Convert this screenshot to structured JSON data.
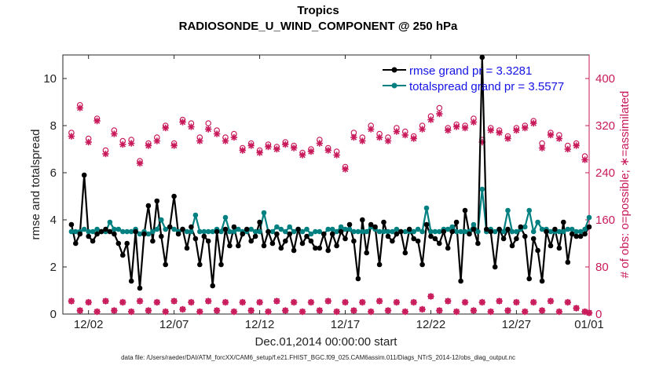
{
  "chart_data": {
    "type": "line",
    "title": "Tropics",
    "subtitle": "RADIOSONDE_U_WIND_COMPONENT @ 250 hPa",
    "xlabel": "Dec.01,2014 00:00:00 start",
    "ylabel": "rmse and totalspread",
    "y2label": "# of obs: o=possible; ∗=assimilated",
    "footnote": "data file: /Users/raeder/DAI/ATM_forcXX/CAM6_setup/f.e21.FHIST_BGC.f09_025.CAM6assim.011/Diags_NTrS_2014-12/obs_diag_output.nc",
    "xlim": [
      0.5,
      31.25
    ],
    "ylim": [
      0,
      11
    ],
    "y2lim": [
      0,
      440
    ],
    "x_ticks": [
      {
        "value": 2,
        "label": "12/02"
      },
      {
        "value": 7,
        "label": "12/07"
      },
      {
        "value": 12,
        "label": "12/12"
      },
      {
        "value": 17,
        "label": "12/17"
      },
      {
        "value": 22,
        "label": "12/22"
      },
      {
        "value": 27,
        "label": "12/27"
      },
      {
        "value": 32,
        "label": "01/01"
      }
    ],
    "y_ticks": [
      0,
      2,
      4,
      6,
      8,
      10
    ],
    "y2_ticks": [
      0,
      80,
      160,
      240,
      320,
      400
    ],
    "legend_position": "top-right",
    "colors": {
      "rmse": "#000000",
      "spread": "#008080",
      "obs": "#c8195a",
      "legend_text": "#1414e6",
      "title": "#000000"
    },
    "x": [
      1.0,
      1.25,
      1.5,
      1.75,
      2.0,
      2.25,
      2.5,
      2.75,
      3.0,
      3.25,
      3.5,
      3.75,
      4.0,
      4.25,
      4.5,
      4.75,
      5.0,
      5.25,
      5.5,
      5.75,
      6.0,
      6.25,
      6.5,
      6.75,
      7.0,
      7.25,
      7.5,
      7.75,
      8.0,
      8.25,
      8.5,
      8.75,
      9.0,
      9.25,
      9.5,
      9.75,
      10.0,
      10.25,
      10.5,
      10.75,
      11.0,
      11.25,
      11.5,
      11.75,
      12.0,
      12.25,
      12.5,
      12.75,
      13.0,
      13.25,
      13.5,
      13.75,
      14.0,
      14.25,
      14.5,
      14.75,
      15.0,
      15.25,
      15.5,
      15.75,
      16.0,
      16.25,
      16.5,
      16.75,
      17.0,
      17.25,
      17.5,
      17.75,
      18.0,
      18.25,
      18.5,
      18.75,
      19.0,
      19.25,
      19.5,
      19.75,
      20.0,
      20.25,
      20.5,
      20.75,
      21.0,
      21.25,
      21.5,
      21.75,
      22.0,
      22.25,
      22.5,
      22.75,
      23.0,
      23.25,
      23.5,
      23.75,
      24.0,
      24.25,
      24.5,
      24.75,
      25.0,
      25.25,
      25.5,
      25.75,
      26.0,
      26.25,
      26.5,
      26.75,
      27.0,
      27.25,
      27.5,
      27.75,
      28.0,
      28.25,
      28.5,
      28.75,
      29.0,
      29.25,
      29.5,
      29.75,
      30.0,
      30.25,
      30.5,
      30.75,
      31.0,
      31.25
    ],
    "series": [
      {
        "name": "rmse grand pr = 3.3281",
        "color": "#000000",
        "values": [
          3.8,
          3.0,
          3.4,
          5.9,
          3.3,
          3.1,
          3.4,
          3.5,
          3.6,
          3.5,
          3.4,
          3.0,
          2.5,
          3.0,
          1.4,
          3.5,
          1.1,
          3.4,
          4.6,
          3.1,
          4.8,
          3.3,
          2.1,
          3.7,
          5.0,
          3.4,
          3.6,
          2.8,
          3.7,
          3.2,
          2.1,
          3.3,
          3.1,
          1.2,
          3.5,
          2.1,
          3.6,
          2.9,
          3.7,
          2.9,
          3.4,
          3.6,
          3.1,
          3.3,
          3.9,
          2.9,
          3.5,
          3.0,
          3.4,
          2.8,
          3.1,
          3.4,
          2.7,
          3.6,
          3.0,
          3.3,
          3.1,
          2.8,
          2.8,
          3.4,
          2.7,
          3.4,
          2.9,
          3.5,
          3.2,
          3.8,
          3.1,
          1.5,
          4.0,
          2.6,
          3.8,
          3.7,
          2.1,
          3.9,
          3.3,
          3.1,
          3.4,
          3.5,
          2.6,
          3.6,
          3.2,
          3.1,
          2.1,
          3.8,
          3.3,
          3.2,
          3.0,
          3.5,
          2.8,
          3.5,
          3.9,
          1.4,
          4.4,
          3.4,
          3.6,
          3.0,
          10.9,
          3.6,
          3.5,
          2.0,
          3.6,
          3.2,
          3.6,
          2.9,
          3.2,
          3.7,
          3.3,
          1.5,
          3.2,
          2.7,
          1.4,
          3.5,
          2.9,
          3.6,
          2.8,
          3.9,
          2.2,
          3.4,
          3.3,
          3.3,
          3.4,
          3.7
        ]
      },
      {
        "name": "totalspread grand pr = 3.5577",
        "color": "#008080",
        "values": [
          3.5,
          3.5,
          3.5,
          3.6,
          3.5,
          3.5,
          3.6,
          3.5,
          3.5,
          3.9,
          3.6,
          3.6,
          3.5,
          3.5,
          3.5,
          3.6,
          3.4,
          3.5,
          3.4,
          3.5,
          3.6,
          4.0,
          3.6,
          3.7,
          3.6,
          3.5,
          3.6,
          3.5,
          3.5,
          4.2,
          3.5,
          3.5,
          3.5,
          3.5,
          3.6,
          3.5,
          4.1,
          3.5,
          3.5,
          3.6,
          3.5,
          3.5,
          3.6,
          3.5,
          3.5,
          4.3,
          3.5,
          3.5,
          3.7,
          3.6,
          3.5,
          3.7,
          3.5,
          3.6,
          3.5,
          3.6,
          3.4,
          3.5,
          3.5,
          3.4,
          3.6,
          3.6,
          3.5,
          3.7,
          3.6,
          3.6,
          3.5,
          3.5,
          3.5,
          3.5,
          3.7,
          3.6,
          3.5,
          3.5,
          3.5,
          3.5,
          3.6,
          3.5,
          3.5,
          3.5,
          3.5,
          3.6,
          3.5,
          4.5,
          3.5,
          3.5,
          3.5,
          3.6,
          3.6,
          3.7,
          3.5,
          3.5,
          3.5,
          3.5,
          3.8,
          3.5,
          5.3,
          3.5,
          3.6,
          3.5,
          3.6,
          3.5,
          4.4,
          3.5,
          3.5,
          3.6,
          3.7,
          4.4,
          3.5,
          3.9,
          3.6,
          3.6,
          3.5,
          3.5,
          3.5,
          3.5,
          3.6,
          3.6,
          3.5,
          3.5,
          3.6,
          4.1
        ]
      }
    ],
    "obs_possible": [
      {
        "x": 1.0,
        "v": 308
      },
      {
        "x": 1.5,
        "v": 355
      },
      {
        "x": 2.0,
        "v": 298
      },
      {
        "x": 2.5,
        "v": 332
      },
      {
        "x": 3.0,
        "v": 278
      },
      {
        "x": 3.5,
        "v": 312
      },
      {
        "x": 4.0,
        "v": 294
      },
      {
        "x": 4.5,
        "v": 296
      },
      {
        "x": 5.0,
        "v": 260
      },
      {
        "x": 5.5,
        "v": 290
      },
      {
        "x": 6.0,
        "v": 300
      },
      {
        "x": 6.5,
        "v": 320
      },
      {
        "x": 7.0,
        "v": 290
      },
      {
        "x": 7.5,
        "v": 330
      },
      {
        "x": 8.0,
        "v": 324
      },
      {
        "x": 8.5,
        "v": 300
      },
      {
        "x": 9.0,
        "v": 324
      },
      {
        "x": 9.5,
        "v": 312
      },
      {
        "x": 10.0,
        "v": 300
      },
      {
        "x": 10.5,
        "v": 306
      },
      {
        "x": 11.0,
        "v": 282
      },
      {
        "x": 11.5,
        "v": 290
      },
      {
        "x": 12.0,
        "v": 278
      },
      {
        "x": 12.5,
        "v": 288
      },
      {
        "x": 13.0,
        "v": 284
      },
      {
        "x": 13.5,
        "v": 292
      },
      {
        "x": 14.0,
        "v": 286
      },
      {
        "x": 14.5,
        "v": 274
      },
      {
        "x": 15.0,
        "v": 280
      },
      {
        "x": 15.5,
        "v": 296
      },
      {
        "x": 16.0,
        "v": 282
      },
      {
        "x": 16.5,
        "v": 276
      },
      {
        "x": 17.0,
        "v": 250
      },
      {
        "x": 17.5,
        "v": 308
      },
      {
        "x": 18.0,
        "v": 300
      },
      {
        "x": 18.5,
        "v": 320
      },
      {
        "x": 19.0,
        "v": 306
      },
      {
        "x": 19.5,
        "v": 300
      },
      {
        "x": 20.0,
        "v": 316
      },
      {
        "x": 20.5,
        "v": 310
      },
      {
        "x": 21.0,
        "v": 302
      },
      {
        "x": 21.5,
        "v": 320
      },
      {
        "x": 22.0,
        "v": 336
      },
      {
        "x": 22.5,
        "v": 350
      },
      {
        "x": 23.0,
        "v": 316
      },
      {
        "x": 23.5,
        "v": 322
      },
      {
        "x": 24.0,
        "v": 320
      },
      {
        "x": 24.5,
        "v": 332
      },
      {
        "x": 25.0,
        "v": 296
      },
      {
        "x": 25.5,
        "v": 316
      },
      {
        "x": 26.0,
        "v": 312
      },
      {
        "x": 26.5,
        "v": 302
      },
      {
        "x": 27.0,
        "v": 316
      },
      {
        "x": 27.5,
        "v": 320
      },
      {
        "x": 28.0,
        "v": 328
      },
      {
        "x": 28.5,
        "v": 290
      },
      {
        "x": 29.0,
        "v": 308
      },
      {
        "x": 29.5,
        "v": 304
      },
      {
        "x": 30.0,
        "v": 286
      },
      {
        "x": 30.5,
        "v": 290
      },
      {
        "x": 31.0,
        "v": 268
      }
    ],
    "obs_assimilated": [
      {
        "x": 1.0,
        "v": 302
      },
      {
        "x": 1.5,
        "v": 350
      },
      {
        "x": 2.0,
        "v": 292
      },
      {
        "x": 2.5,
        "v": 328
      },
      {
        "x": 3.0,
        "v": 272
      },
      {
        "x": 3.5,
        "v": 306
      },
      {
        "x": 4.0,
        "v": 288
      },
      {
        "x": 4.5,
        "v": 290
      },
      {
        "x": 5.0,
        "v": 256
      },
      {
        "x": 5.5,
        "v": 286
      },
      {
        "x": 6.0,
        "v": 294
      },
      {
        "x": 6.5,
        "v": 316
      },
      {
        "x": 7.0,
        "v": 286
      },
      {
        "x": 7.5,
        "v": 326
      },
      {
        "x": 8.0,
        "v": 318
      },
      {
        "x": 8.5,
        "v": 294
      },
      {
        "x": 9.0,
        "v": 314
      },
      {
        "x": 9.5,
        "v": 306
      },
      {
        "x": 10.0,
        "v": 294
      },
      {
        "x": 10.5,
        "v": 300
      },
      {
        "x": 11.0,
        "v": 278
      },
      {
        "x": 11.5,
        "v": 286
      },
      {
        "x": 12.0,
        "v": 274
      },
      {
        "x": 12.5,
        "v": 284
      },
      {
        "x": 13.0,
        "v": 280
      },
      {
        "x": 13.5,
        "v": 288
      },
      {
        "x": 14.0,
        "v": 282
      },
      {
        "x": 14.5,
        "v": 270
      },
      {
        "x": 15.0,
        "v": 276
      },
      {
        "x": 15.5,
        "v": 290
      },
      {
        "x": 16.0,
        "v": 278
      },
      {
        "x": 16.5,
        "v": 270
      },
      {
        "x": 17.0,
        "v": 246
      },
      {
        "x": 17.5,
        "v": 300
      },
      {
        "x": 18.0,
        "v": 294
      },
      {
        "x": 18.5,
        "v": 314
      },
      {
        "x": 19.0,
        "v": 300
      },
      {
        "x": 19.5,
        "v": 294
      },
      {
        "x": 20.0,
        "v": 310
      },
      {
        "x": 20.5,
        "v": 304
      },
      {
        "x": 21.0,
        "v": 298
      },
      {
        "x": 21.5,
        "v": 314
      },
      {
        "x": 22.0,
        "v": 330
      },
      {
        "x": 22.5,
        "v": 340
      },
      {
        "x": 23.0,
        "v": 312
      },
      {
        "x": 23.5,
        "v": 318
      },
      {
        "x": 24.0,
        "v": 316
      },
      {
        "x": 24.5,
        "v": 326
      },
      {
        "x": 25.0,
        "v": 292
      },
      {
        "x": 25.5,
        "v": 312
      },
      {
        "x": 26.0,
        "v": 308
      },
      {
        "x": 26.5,
        "v": 298
      },
      {
        "x": 27.0,
        "v": 312
      },
      {
        "x": 27.5,
        "v": 316
      },
      {
        "x": 28.0,
        "v": 324
      },
      {
        "x": 28.5,
        "v": 282
      },
      {
        "x": 29.0,
        "v": 304
      },
      {
        "x": 29.5,
        "v": 298
      },
      {
        "x": 30.0,
        "v": 280
      },
      {
        "x": 30.5,
        "v": 286
      },
      {
        "x": 31.0,
        "v": 262
      }
    ],
    "obs_possible_low": [
      {
        "x": 1.0,
        "v": 22
      },
      {
        "x": 1.5,
        "v": 6
      },
      {
        "x": 2.0,
        "v": 20
      },
      {
        "x": 2.5,
        "v": 4
      },
      {
        "x": 3.0,
        "v": 22
      },
      {
        "x": 3.5,
        "v": 6
      },
      {
        "x": 4.0,
        "v": 20
      },
      {
        "x": 4.5,
        "v": 4
      },
      {
        "x": 5.0,
        "v": 22
      },
      {
        "x": 5.5,
        "v": 6
      },
      {
        "x": 6.0,
        "v": 20
      },
      {
        "x": 6.5,
        "v": 4
      },
      {
        "x": 7.0,
        "v": 22
      },
      {
        "x": 7.5,
        "v": 8
      },
      {
        "x": 8.0,
        "v": 20
      },
      {
        "x": 8.5,
        "v": 4
      },
      {
        "x": 9.0,
        "v": 22
      },
      {
        "x": 9.5,
        "v": 6
      },
      {
        "x": 10.0,
        "v": 20
      },
      {
        "x": 10.5,
        "v": 4
      },
      {
        "x": 11.0,
        "v": 20
      },
      {
        "x": 11.5,
        "v": 6
      },
      {
        "x": 12.0,
        "v": 20
      },
      {
        "x": 12.5,
        "v": 4
      },
      {
        "x": 13.0,
        "v": 22
      },
      {
        "x": 13.5,
        "v": 6
      },
      {
        "x": 14.0,
        "v": 20
      },
      {
        "x": 14.5,
        "v": 4
      },
      {
        "x": 15.0,
        "v": 20
      },
      {
        "x": 15.5,
        "v": 6
      },
      {
        "x": 16.0,
        "v": 22
      },
      {
        "x": 16.5,
        "v": 4
      },
      {
        "x": 17.0,
        "v": 20
      },
      {
        "x": 17.5,
        "v": 6
      },
      {
        "x": 18.0,
        "v": 20
      },
      {
        "x": 18.5,
        "v": 4
      },
      {
        "x": 19.0,
        "v": 22
      },
      {
        "x": 19.5,
        "v": 6
      },
      {
        "x": 20.0,
        "v": 20
      },
      {
        "x": 20.5,
        "v": 4
      },
      {
        "x": 21.0,
        "v": 20
      },
      {
        "x": 21.5,
        "v": 8
      },
      {
        "x": 22.0,
        "v": 30
      },
      {
        "x": 22.5,
        "v": 6
      },
      {
        "x": 23.0,
        "v": 22
      },
      {
        "x": 23.5,
        "v": 4
      },
      {
        "x": 24.0,
        "v": 20
      },
      {
        "x": 24.5,
        "v": 6
      },
      {
        "x": 25.0,
        "v": 20
      },
      {
        "x": 25.5,
        "v": 4
      },
      {
        "x": 26.0,
        "v": 22
      },
      {
        "x": 26.5,
        "v": 6
      },
      {
        "x": 27.0,
        "v": 20
      },
      {
        "x": 27.5,
        "v": 4
      },
      {
        "x": 28.0,
        "v": 20
      },
      {
        "x": 28.5,
        "v": 6
      },
      {
        "x": 29.0,
        "v": 22
      },
      {
        "x": 29.5,
        "v": 4
      },
      {
        "x": 30.0,
        "v": 20
      },
      {
        "x": 30.5,
        "v": 10
      },
      {
        "x": 31.0,
        "v": 4
      },
      {
        "x": 31.25,
        "v": 2
      }
    ]
  }
}
